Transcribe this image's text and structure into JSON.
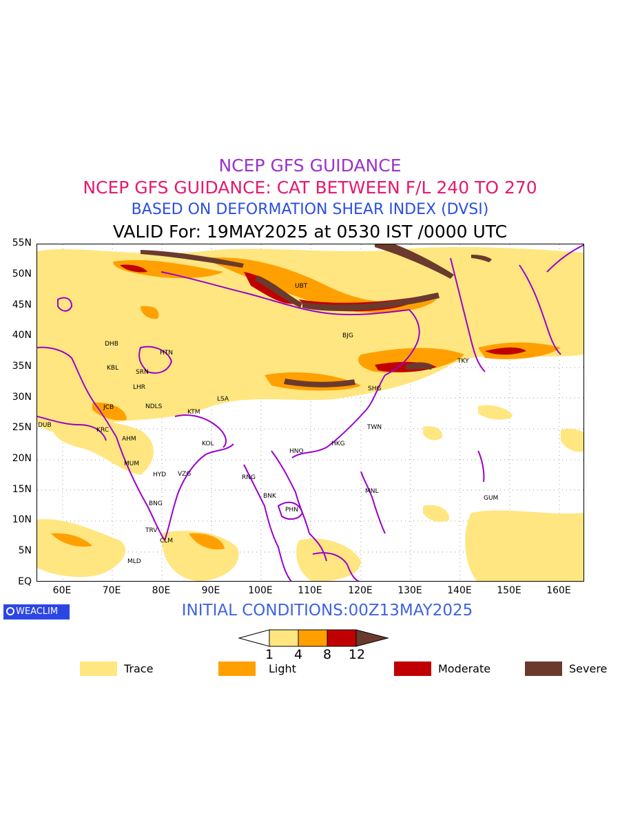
{
  "titles": {
    "line1": "NCEP GFS GUIDANCE",
    "line2": "NCEP GFS GUIDANCE: CAT BETWEEN F/L 240 TO 270",
    "line3": "BASED ON DEFORMATION SHEAR INDEX (DVSI)",
    "line4": "VALID For: 19MAY2025 at 0530 IST /0000 UTC"
  },
  "colors": {
    "title1": "#9933cc",
    "title2": "#e6196e",
    "title3": "#2a4ee0",
    "title4": "#000000",
    "trace": "#ffe680",
    "light": "#ffa000",
    "moderate": "#c00000",
    "severe": "#6b3a2e",
    "border": "#9900cc"
  },
  "axes": {
    "lat_labels": [
      "55N",
      "50N",
      "45N",
      "40N",
      "35N",
      "30N",
      "25N",
      "20N",
      "15N",
      "10N",
      "5N",
      "EQ"
    ],
    "lon_labels": [
      "60E",
      "70E",
      "80E",
      "90E",
      "100E",
      "110E",
      "120E",
      "130E",
      "140E",
      "150E",
      "160E"
    ]
  },
  "stations": [
    {
      "code": "UBT"
    },
    {
      "code": "BJG"
    },
    {
      "code": "DHB"
    },
    {
      "code": "HTN"
    },
    {
      "code": "KBL"
    },
    {
      "code": "SRN"
    },
    {
      "code": "LHR"
    },
    {
      "code": "TKY"
    },
    {
      "code": "SHG"
    },
    {
      "code": "LSA"
    },
    {
      "code": "JCB"
    },
    {
      "code": "NDLS"
    },
    {
      "code": "KTM"
    },
    {
      "code": "DUB"
    },
    {
      "code": "KRC"
    },
    {
      "code": "TWN"
    },
    {
      "code": "AHM"
    },
    {
      "code": "KOL"
    },
    {
      "code": "HKG"
    },
    {
      "code": "HNO"
    },
    {
      "code": "MUM"
    },
    {
      "code": "HYD"
    },
    {
      "code": "VZG"
    },
    {
      "code": "RNG"
    },
    {
      "code": "MNL"
    },
    {
      "code": "BNK"
    },
    {
      "code": "GUM"
    },
    {
      "code": "BNG"
    },
    {
      "code": "PHN"
    },
    {
      "code": "TRV"
    },
    {
      "code": "CLM"
    },
    {
      "code": "MLD"
    }
  ],
  "logo": {
    "text": "WEACLIM",
    "icon": "copyright-circle-icon"
  },
  "initial_conditions": "INITIAL CONDITIONS:00Z13MAY2025",
  "colorbar": {
    "ticks": [
      "1",
      "4",
      "8",
      "12"
    ]
  },
  "legend": [
    {
      "label": "Trace"
    },
    {
      "label": "Light"
    },
    {
      "label": "Moderate"
    },
    {
      "label": "Severe"
    }
  ]
}
